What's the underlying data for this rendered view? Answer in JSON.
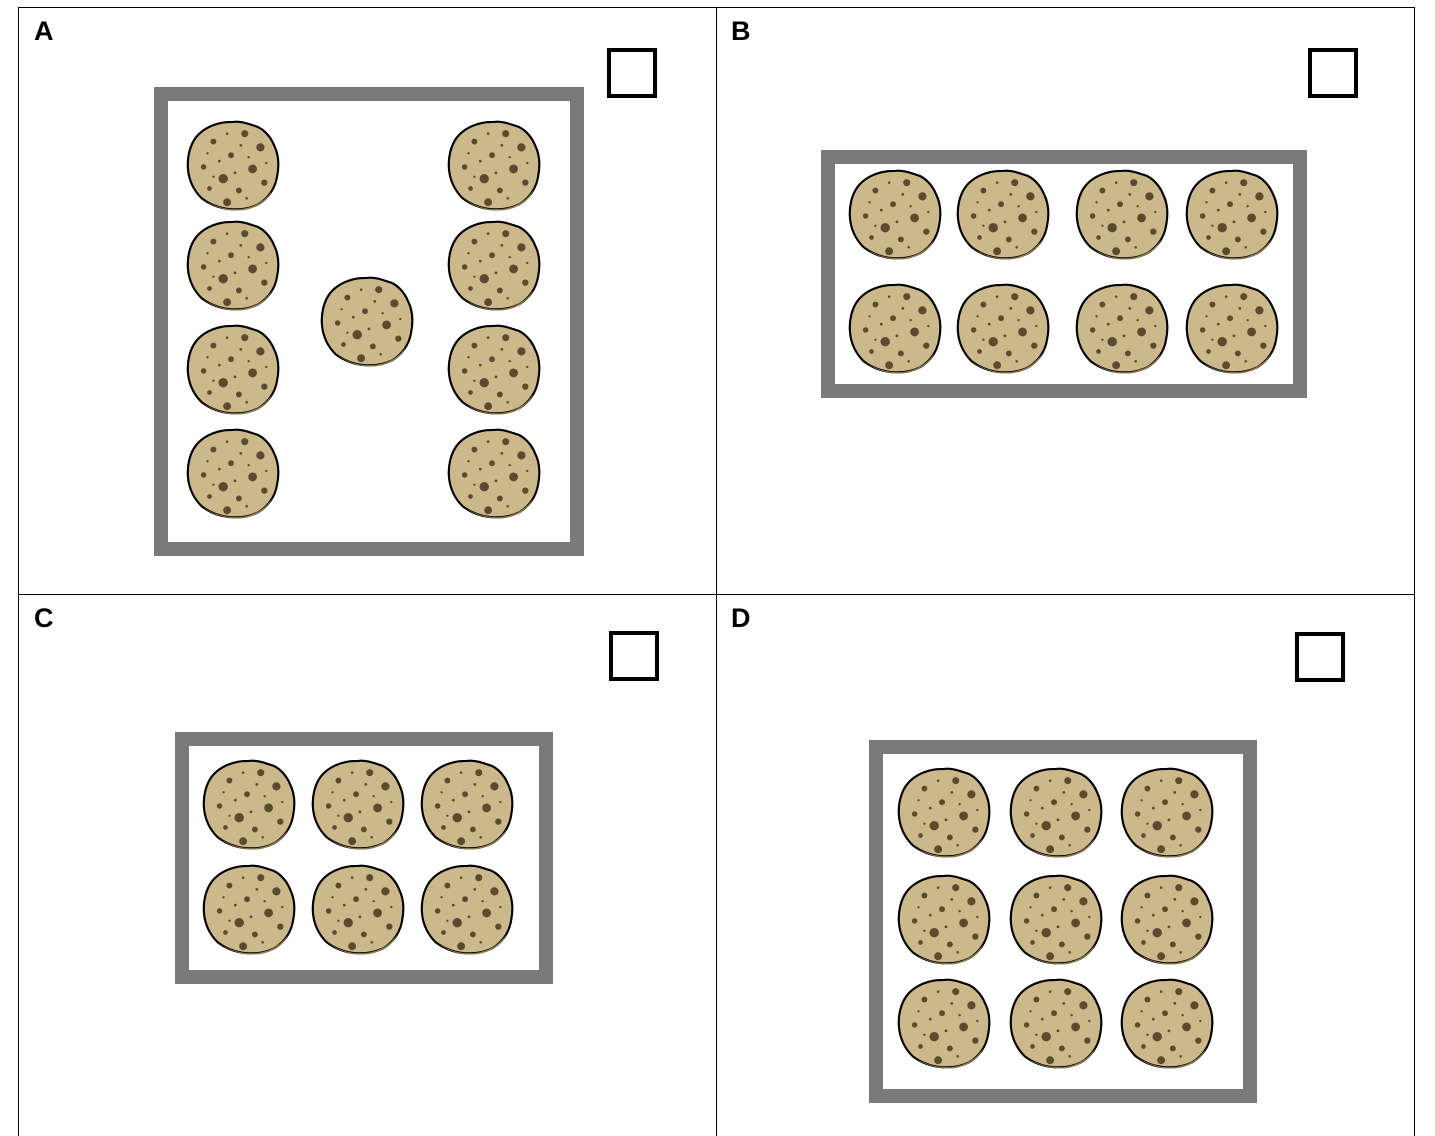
{
  "panels": [
    {
      "id": "A",
      "label": "A",
      "cookie_count": 9,
      "checked": false
    },
    {
      "id": "B",
      "label": "B",
      "cookie_count": 8,
      "checked": false
    },
    {
      "id": "C",
      "label": "C",
      "cookie_count": 6,
      "checked": false
    },
    {
      "id": "D",
      "label": "D",
      "cookie_count": 9,
      "checked": false
    }
  ],
  "icons": {
    "cookie": "cookie-icon",
    "checkbox": "checkbox-empty"
  },
  "colors": {
    "tray_border": "#7a7a7a",
    "cookie_fill": "#cbb98b",
    "cookie_edge": "#8a7a52",
    "chip": "#5b4a2e",
    "outline": "#000000"
  }
}
